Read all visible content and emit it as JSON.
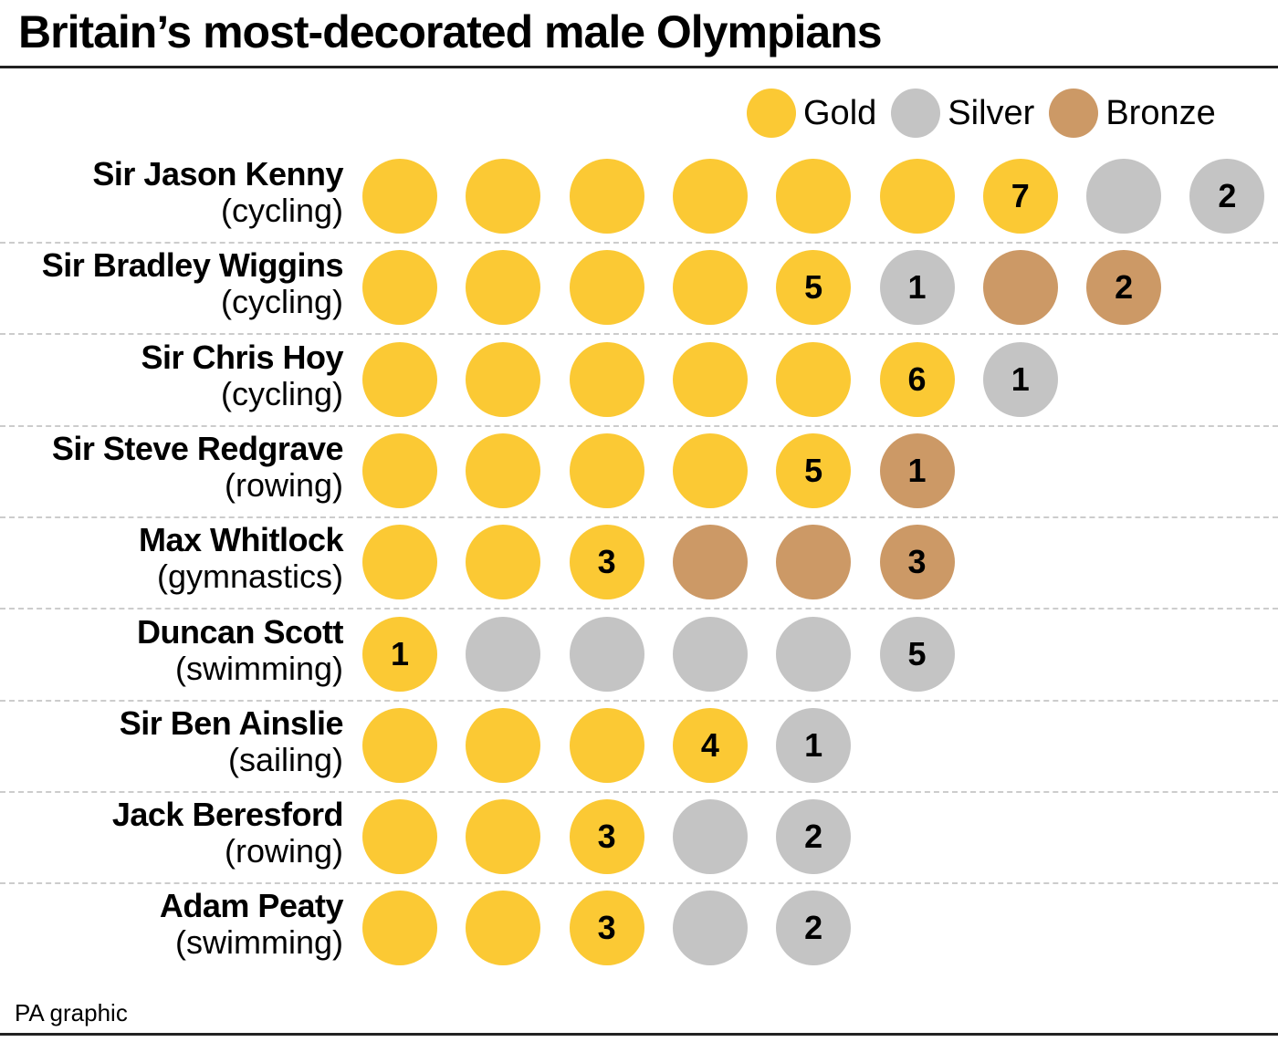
{
  "title": "Britain’s most-decorated male Olympians",
  "credit": "PA graphic",
  "colors": {
    "gold": "#FBC934",
    "silver": "#C4C4C4",
    "bronze": "#CC9966"
  },
  "legend": [
    {
      "key": "gold",
      "label": "Gold"
    },
    {
      "key": "silver",
      "label": "Silver"
    },
    {
      "key": "bronze",
      "label": "Bronze"
    }
  ],
  "chart_data": {
    "type": "table",
    "title": "Britain’s most-decorated male Olympians",
    "legend_position": "top-right",
    "rows": [
      {
        "name": "Sir Jason Kenny",
        "sport": "(cycling)",
        "gold": 7,
        "silver": 2,
        "bronze": 0
      },
      {
        "name": "Sir Bradley Wiggins",
        "sport": "(cycling)",
        "gold": 5,
        "silver": 1,
        "bronze": 2
      },
      {
        "name": "Sir Chris Hoy",
        "sport": "(cycling)",
        "gold": 6,
        "silver": 1,
        "bronze": 0
      },
      {
        "name": "Sir Steve Redgrave",
        "sport": "(rowing)",
        "gold": 5,
        "silver": 0,
        "bronze": 1
      },
      {
        "name": "Max Whitlock",
        "sport": "(gymnastics)",
        "gold": 3,
        "silver": 0,
        "bronze": 3
      },
      {
        "name": "Duncan Scott",
        "sport": "(swimming)",
        "gold": 1,
        "silver": 5,
        "bronze": 0
      },
      {
        "name": "Sir Ben Ainslie",
        "sport": "(sailing)",
        "gold": 4,
        "silver": 1,
        "bronze": 0
      },
      {
        "name": "Jack Beresford",
        "sport": "(rowing)",
        "gold": 3,
        "silver": 2,
        "bronze": 0
      },
      {
        "name": "Adam Peaty",
        "sport": "(swimming)",
        "gold": 3,
        "silver": 2,
        "bronze": 0
      }
    ]
  }
}
